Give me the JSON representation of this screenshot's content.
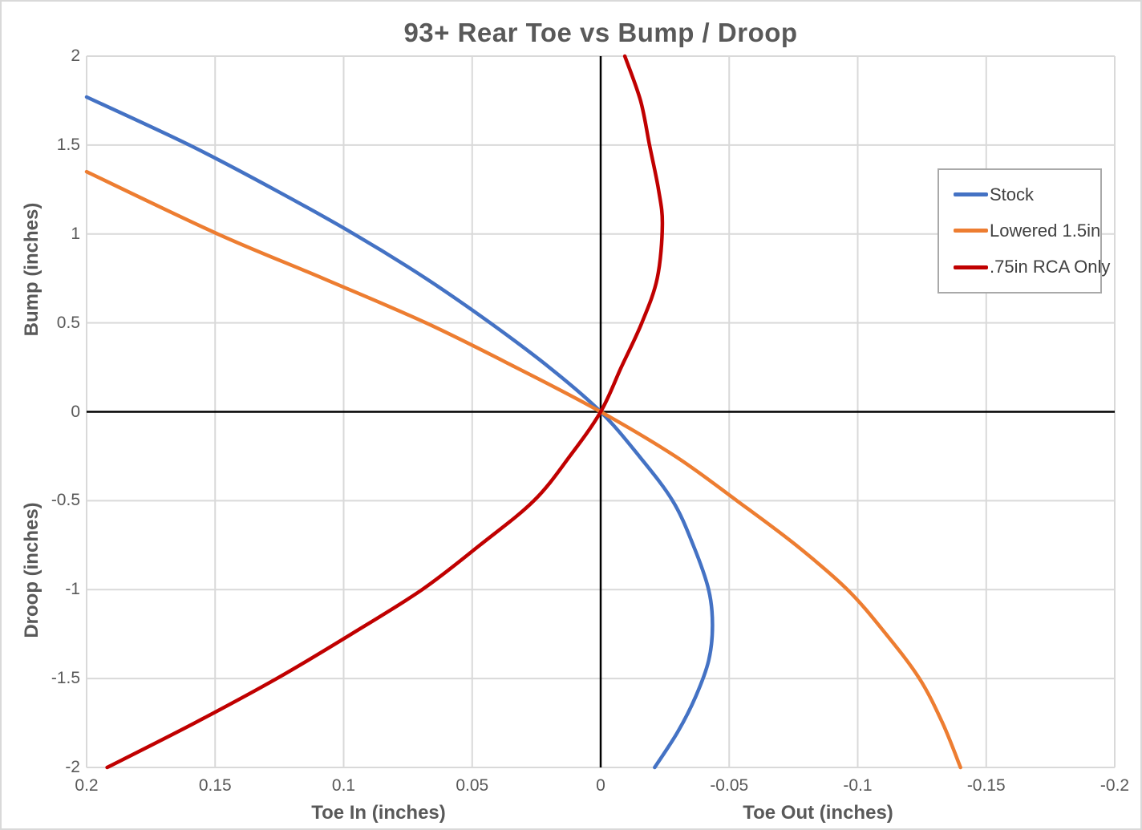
{
  "title": "93+ Rear Toe vs Bump / Droop",
  "colors": {
    "title_text": "#595959",
    "tick_text": "#595959",
    "legend_text": "#404040",
    "gridline": "#d9d9d9",
    "axis_line": "#000000",
    "legend_border": "#a9a9a9",
    "frame_border": "#d9d9d9",
    "background": "#ffffff"
  },
  "chart_data": {
    "type": "line",
    "title": "93+ Rear Toe vs Bump / Droop",
    "grid": true,
    "legend_position": "top-right",
    "x_axis": {
      "title_left_half": "Toe In (inches)",
      "title_right_half": "Toe Out (inches)",
      "min": -0.2,
      "max": 0.2,
      "reversed": true,
      "ticks": [
        0.2,
        0.15,
        0.1,
        0.05,
        0,
        -0.05,
        -0.1,
        -0.15,
        -0.2
      ],
      "tick_labels": [
        "0.2",
        "0.15",
        "0.1",
        "0.05",
        "0",
        "-0.05",
        "-0.1",
        "-0.15",
        "-0.2"
      ]
    },
    "y_axis": {
      "title_top_half": "Bump (inches)",
      "title_bottom_half": "Droop (inches)",
      "min": -2,
      "max": 2,
      "ticks": [
        2,
        1.5,
        1,
        0.5,
        0,
        -0.5,
        -1,
        -1.5,
        -2
      ],
      "tick_labels": [
        "2",
        "1.5",
        "1",
        "0.5",
        "0",
        "-0.5",
        "-1",
        "-1.5",
        "-2"
      ]
    },
    "series": [
      {
        "name": "Stock",
        "color": "#4472c4",
        "points_x_toe_y_bump": [
          [
            0.2,
            1.77
          ],
          [
            0.16,
            1.5
          ],
          [
            0.127,
            1.25
          ],
          [
            0.096,
            1.0
          ],
          [
            0.068,
            0.75
          ],
          [
            0.043,
            0.5
          ],
          [
            0.02,
            0.25
          ],
          [
            0.0,
            0.0
          ],
          [
            -0.015,
            -0.25
          ],
          [
            -0.028,
            -0.5
          ],
          [
            -0.036,
            -0.75
          ],
          [
            -0.042,
            -1.0
          ],
          [
            -0.0435,
            -1.2
          ],
          [
            -0.042,
            -1.4
          ],
          [
            -0.037,
            -1.6
          ],
          [
            -0.03,
            -1.8
          ],
          [
            -0.021,
            -2.0
          ]
        ]
      },
      {
        "name": "Lowered 1.5in",
        "color": "#ed7d31",
        "points_x_toe_y_bump": [
          [
            0.2,
            1.35
          ],
          [
            0.149,
            1.0
          ],
          [
            0.108,
            0.75
          ],
          [
            0.068,
            0.5
          ],
          [
            0.033,
            0.25
          ],
          [
            0.0,
            0.0
          ],
          [
            -0.029,
            -0.25
          ],
          [
            -0.053,
            -0.5
          ],
          [
            -0.076,
            -0.75
          ],
          [
            -0.096,
            -1.0
          ],
          [
            -0.111,
            -1.25
          ],
          [
            -0.124,
            -1.5
          ],
          [
            -0.133,
            -1.75
          ],
          [
            -0.14,
            -2.0
          ]
        ]
      },
      {
        "name": ".75in RCA Only",
        "color": "#c00000",
        "points_x_toe_y_bump": [
          [
            -0.0094,
            2.0
          ],
          [
            -0.0155,
            1.75
          ],
          [
            -0.019,
            1.5
          ],
          [
            -0.0225,
            1.25
          ],
          [
            -0.024,
            1.05
          ],
          [
            -0.022,
            0.75
          ],
          [
            -0.016,
            0.5
          ],
          [
            -0.008,
            0.25
          ],
          [
            0.0,
            0.0
          ],
          [
            0.012,
            -0.25
          ],
          [
            0.026,
            -0.5
          ],
          [
            0.047,
            -0.75
          ],
          [
            0.0695,
            -1.0
          ],
          [
            0.097,
            -1.25
          ],
          [
            0.126,
            -1.5
          ],
          [
            0.158,
            -1.75
          ],
          [
            0.192,
            -2.0
          ]
        ]
      }
    ]
  }
}
